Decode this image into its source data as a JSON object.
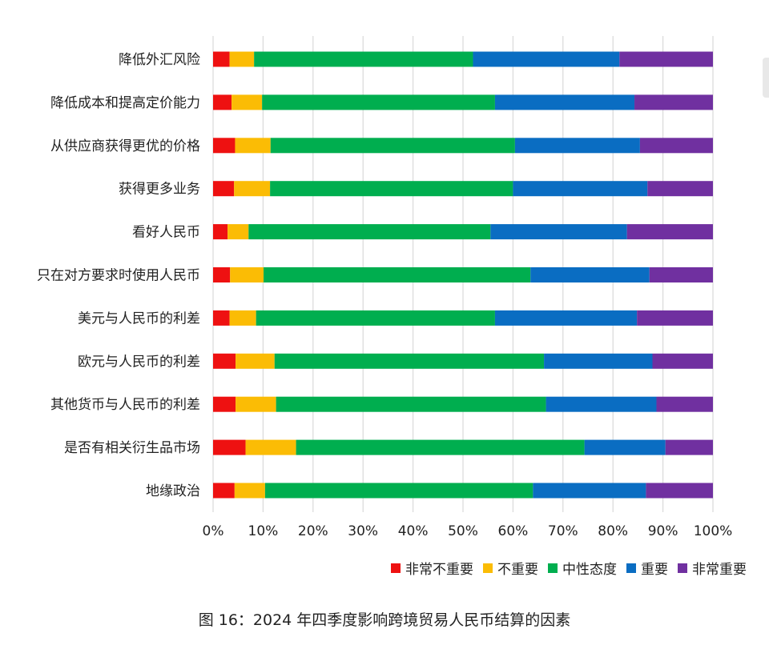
{
  "chart_data": {
    "type": "bar",
    "orientation": "horizontal",
    "stacked": true,
    "percent": true,
    "title": "图 16：2024 年四季度影响跨境贸易人民币结算的因素",
    "categories": [
      "降低外汇风险",
      "降低成本和提高定价能力",
      "从供应商获得更优的价格",
      "获得更多业务",
      "看好人民币",
      "只在对方要求时使用人民币",
      "美元与人民币的利差",
      "欧元与人民币的利差",
      "其他货币与人民币的利差",
      "是否有相关衍生品市场",
      "地缘政治"
    ],
    "series": [
      {
        "name": "非常不重要",
        "color": "#ee1111",
        "values": [
          3.3,
          3.7,
          4.4,
          4.2,
          2.9,
          3.4,
          3.3,
          4.5,
          4.5,
          6.5,
          4.3
        ]
      },
      {
        "name": "不重要",
        "color": "#fbbc05",
        "values": [
          4.9,
          6.1,
          7.1,
          7.2,
          4.2,
          6.7,
          5.3,
          7.8,
          8.1,
          10.1,
          6.1
        ]
      },
      {
        "name": "中性态度",
        "color": "#00ae4f",
        "values": [
          43.8,
          46.6,
          48.9,
          48.6,
          48.4,
          53.4,
          47.8,
          53.9,
          54.0,
          57.7,
          53.6
        ]
      },
      {
        "name": "重要",
        "color": "#0a6dc2",
        "values": [
          29.3,
          27.9,
          25.0,
          26.9,
          27.3,
          23.8,
          28.4,
          21.7,
          22.1,
          16.2,
          22.6
        ]
      },
      {
        "name": "非常重要",
        "color": "#7030a0",
        "values": [
          18.7,
          15.7,
          14.6,
          13.1,
          17.2,
          12.7,
          15.2,
          12.1,
          11.3,
          9.5,
          13.4
        ]
      }
    ],
    "xticks": [
      "0%",
      "10%",
      "20%",
      "30%",
      "40%",
      "50%",
      "60%",
      "70%",
      "80%",
      "90%",
      "100%"
    ],
    "xlim": [
      0,
      100
    ],
    "grid": true,
    "legend_position": "bottom-right",
    "xlabel": "",
    "ylabel": ""
  }
}
